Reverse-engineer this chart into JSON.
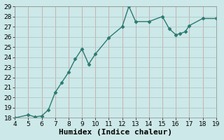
{
  "x": [
    4,
    5,
    5.5,
    6,
    6.5,
    7,
    7.5,
    8,
    8.5,
    9,
    9.5,
    10,
    11,
    12,
    12.5,
    13,
    14,
    15,
    15.5,
    16,
    16.3,
    16.7,
    17,
    18,
    19
  ],
  "y": [
    18.0,
    18.3,
    18.1,
    18.2,
    18.8,
    20.5,
    21.5,
    22.5,
    23.8,
    24.8,
    23.3,
    24.3,
    25.9,
    27.0,
    29.0,
    27.5,
    27.5,
    28.0,
    26.8,
    26.2,
    26.3,
    26.5,
    27.1,
    27.8,
    27.8
  ],
  "color": "#2a7a70",
  "bg_color": "#cce8e8",
  "grid_color": "#b0c8c8",
  "xlabel": "Humidex (Indice chaleur)",
  "xlim": [
    4,
    19
  ],
  "ylim": [
    18,
    29
  ],
  "xticks": [
    4,
    5,
    6,
    7,
    8,
    9,
    10,
    11,
    12,
    13,
    14,
    15,
    16,
    17,
    18,
    19
  ],
  "yticks": [
    18,
    19,
    20,
    21,
    22,
    23,
    24,
    25,
    26,
    27,
    28,
    29
  ],
  "marker": "D",
  "markersize": 2.5,
  "linewidth": 1.0,
  "xlabel_fontsize": 8,
  "tick_fontsize": 6.5
}
